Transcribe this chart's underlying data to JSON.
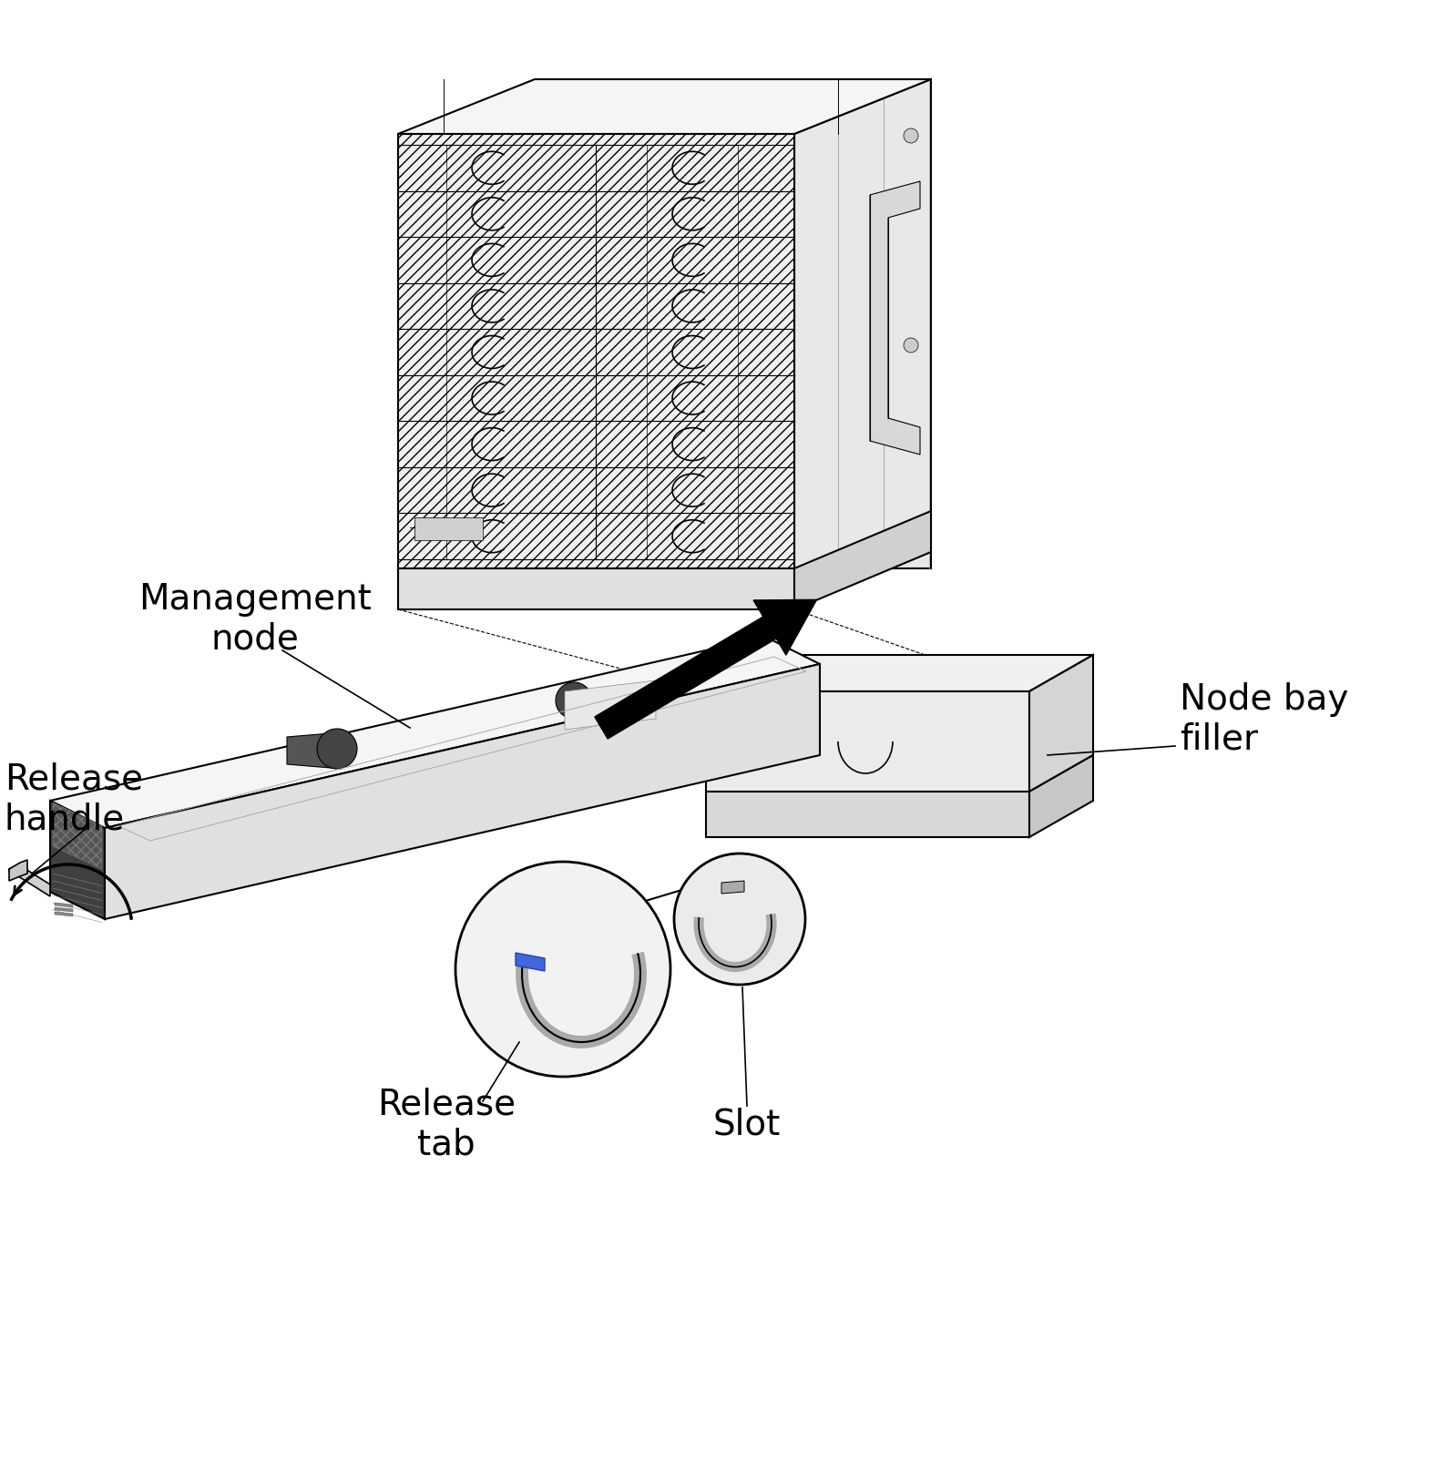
{
  "bg_color": "#ffffff",
  "line_color": "#000000",
  "labels": {
    "management_node": "Management\nnode",
    "release_handle": "Release\nhandle",
    "node_bay_filler": "Node bay\nfiller",
    "release_tab": "Release\ntab",
    "slot": "Slot"
  },
  "figsize": [
    15.83,
    16.06
  ],
  "dpi": 100
}
